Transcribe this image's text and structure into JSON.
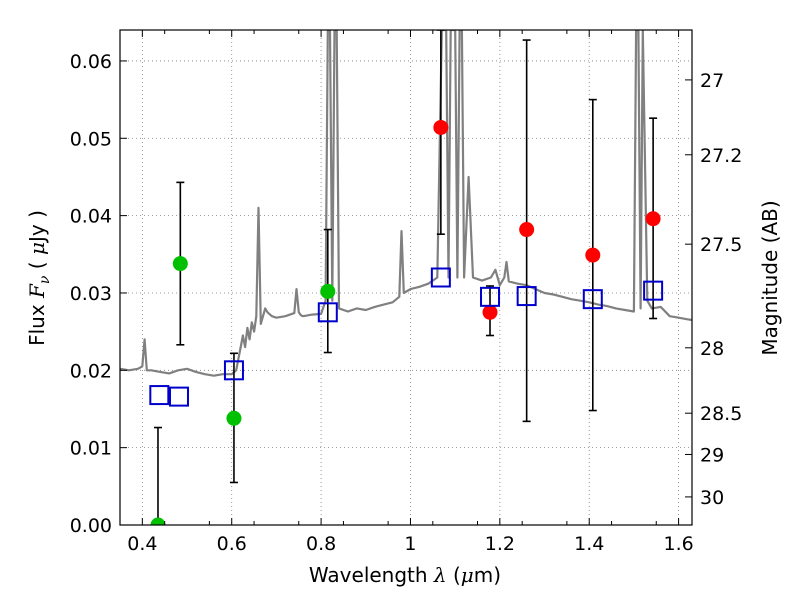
{
  "chart_data": {
    "type": "scatter",
    "xlabel": "Wavelength  λ (μm)",
    "ylabel": "Flux  F_ν  ( μJy )",
    "ylabel_right": "Magnitude (AB)",
    "xlim": [
      0.35,
      1.63
    ],
    "ylim": [
      0.0,
      0.064
    ],
    "grid": true,
    "x_ticks": [
      0.4,
      0.6,
      0.8,
      1.0,
      1.2,
      1.4,
      1.6
    ],
    "x_tick_labels": [
      "0.4",
      "0.6",
      "0.8",
      "1",
      "1.2",
      "1.4",
      "1.6"
    ],
    "y_ticks": [
      0.0,
      0.01,
      0.02,
      0.03,
      0.04,
      0.05,
      0.06
    ],
    "y_tick_labels": [
      "0.00",
      "0.01",
      "0.02",
      "0.03",
      "0.04",
      "0.05",
      "0.06"
    ],
    "right_ticks": [
      {
        "label": "27",
        "value": 27.0
      },
      {
        "label": "27.2",
        "value": 27.2
      },
      {
        "label": "27.5",
        "value": 27.5
      },
      {
        "label": "28",
        "value": 28.0
      },
      {
        "label": "28.5",
        "value": 28.5
      },
      {
        "label": "29",
        "value": 29.0
      },
      {
        "label": "30",
        "value": 30.0
      }
    ],
    "colors": {
      "spectrum": "#808080",
      "green": "#00c000",
      "red": "#ff0000",
      "model": "#0000cc",
      "errorbar": "#000000",
      "grid": "#7f7f7f"
    },
    "series": [
      {
        "name": "model_spectrum",
        "kind": "line",
        "x": [
          0.35,
          0.37,
          0.39,
          0.4,
          0.405,
          0.41,
          0.42,
          0.44,
          0.46,
          0.48,
          0.5,
          0.52,
          0.54,
          0.56,
          0.58,
          0.6,
          0.61,
          0.615,
          0.62,
          0.625,
          0.63,
          0.635,
          0.64,
          0.645,
          0.65,
          0.655,
          0.66,
          0.665,
          0.67,
          0.675,
          0.68,
          0.69,
          0.7,
          0.72,
          0.74,
          0.745,
          0.75,
          0.755,
          0.76,
          0.78,
          0.8,
          0.81,
          0.815,
          0.82,
          0.825,
          0.83,
          0.835,
          0.84,
          0.86,
          0.88,
          0.9,
          0.92,
          0.94,
          0.96,
          0.975,
          0.98,
          0.985,
          1.0,
          1.02,
          1.04,
          1.06,
          1.07,
          1.08,
          1.085,
          1.09,
          1.1,
          1.105,
          1.11,
          1.115,
          1.12,
          1.13,
          1.14,
          1.16,
          1.18,
          1.19,
          1.2,
          1.21,
          1.215,
          1.22,
          1.24,
          1.26,
          1.28,
          1.3,
          1.32,
          1.34,
          1.36,
          1.38,
          1.4,
          1.42,
          1.44,
          1.46,
          1.48,
          1.5,
          1.505,
          1.51,
          1.515,
          1.52,
          1.53,
          1.54,
          1.56,
          1.58,
          1.6,
          1.62,
          1.63
        ],
        "y": [
          0.0202,
          0.02,
          0.0202,
          0.0205,
          0.024,
          0.02,
          0.02,
          0.0198,
          0.0196,
          0.02,
          0.0202,
          0.0198,
          0.0195,
          0.0193,
          0.0195,
          0.0195,
          0.02,
          0.0215,
          0.023,
          0.0245,
          0.023,
          0.0255,
          0.024,
          0.0262,
          0.025,
          0.027,
          0.041,
          0.026,
          0.027,
          0.028,
          0.0275,
          0.027,
          0.0268,
          0.027,
          0.0274,
          0.0305,
          0.0275,
          0.0271,
          0.027,
          0.0272,
          0.0273,
          0.029,
          0.064,
          0.064,
          0.029,
          0.064,
          0.064,
          0.028,
          0.0276,
          0.028,
          0.0278,
          0.0282,
          0.0285,
          0.0288,
          0.0295,
          0.038,
          0.03,
          0.0305,
          0.0308,
          0.0312,
          0.032,
          0.064,
          0.064,
          0.032,
          0.064,
          0.064,
          0.032,
          0.064,
          0.064,
          0.032,
          0.045,
          0.032,
          0.0316,
          0.032,
          0.033,
          0.031,
          0.032,
          0.034,
          0.0315,
          0.0312,
          0.031,
          0.0305,
          0.03,
          0.0298,
          0.0295,
          0.0292,
          0.029,
          0.0288,
          0.0285,
          0.0283,
          0.028,
          0.0278,
          0.0276,
          0.064,
          0.064,
          0.028,
          0.064,
          0.029,
          0.028,
          0.0282,
          0.027,
          0.0268,
          0.0266,
          0.0265
        ]
      },
      {
        "name": "green_points",
        "kind": "points",
        "x": [
          0.435,
          0.485,
          0.605,
          0.815
        ],
        "y": [
          0.0,
          0.0338,
          0.0138,
          0.0302
        ],
        "err_low": [
          0.0,
          0.0233,
          0.0055,
          0.0223
        ],
        "err_high": [
          0.0126,
          0.0443,
          0.0222,
          0.0382
        ]
      },
      {
        "name": "red_points",
        "kind": "points",
        "x": [
          1.068,
          1.178,
          1.26,
          1.408,
          1.543
        ],
        "y": [
          0.0514,
          0.0275,
          0.0382,
          0.0349,
          0.0396
        ],
        "err_low": [
          0.0376,
          0.0245,
          0.0134,
          0.0148,
          0.0267
        ],
        "err_high": [
          0.064,
          0.0309,
          0.0627,
          0.055,
          0.0526
        ]
      },
      {
        "name": "model_photometry",
        "kind": "squares",
        "x": [
          0.438,
          0.482,
          0.605,
          0.815,
          1.068,
          1.178,
          1.26,
          1.408,
          1.543
        ],
        "y": [
          0.0168,
          0.0166,
          0.02,
          0.0275,
          0.032,
          0.0295,
          0.0296,
          0.0292,
          0.0303
        ]
      }
    ]
  }
}
